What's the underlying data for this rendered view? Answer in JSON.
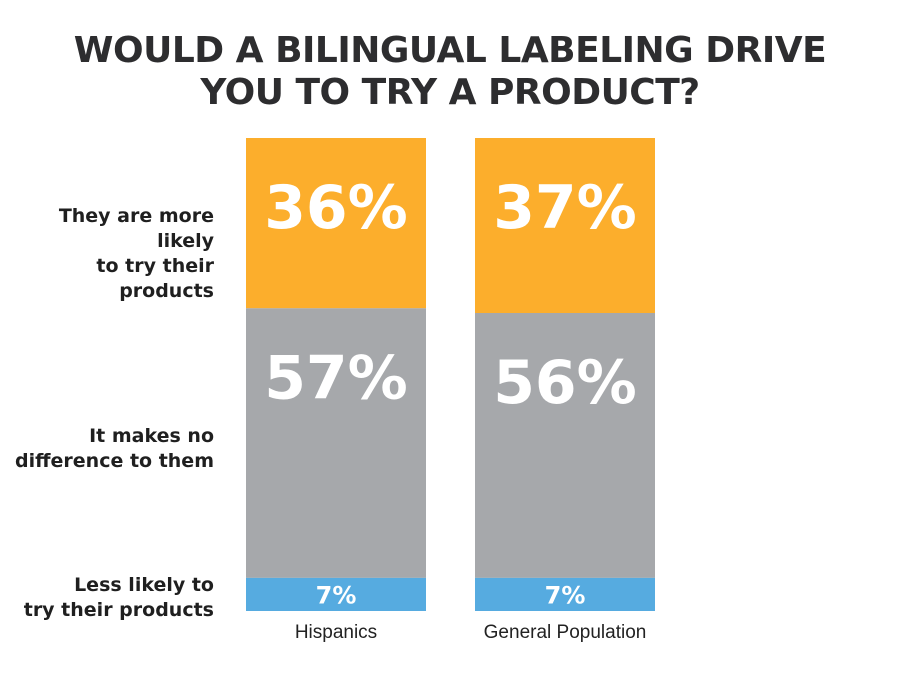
{
  "chart_data": {
    "type": "bar",
    "stacked": true,
    "normalized": true,
    "title_lines": [
      "WOULD A BILINGUAL LABELING DRIVE",
      "YOU TO TRY A PRODUCT?"
    ],
    "categories": [
      "Hispanics",
      "General Population"
    ],
    "series": [
      {
        "name_lines": [
          "They are more likely",
          "to try their products"
        ],
        "values": [
          36,
          37
        ],
        "labels": [
          "36%",
          "37%"
        ],
        "color": "#fcae2c"
      },
      {
        "name_lines": [
          "It makes no",
          "difference to them"
        ],
        "values": [
          57,
          56
        ],
        "labels": [
          "57%",
          "56%"
        ],
        "color": "#a6a8ab"
      },
      {
        "name_lines": [
          "Less likely to",
          "try their products"
        ],
        "values": [
          7,
          7
        ],
        "labels": [
          "7%",
          "7%"
        ],
        "color": "#56abe0"
      }
    ],
    "ylim": [
      0,
      100
    ],
    "grid": false,
    "legend": "left"
  }
}
